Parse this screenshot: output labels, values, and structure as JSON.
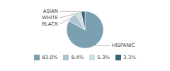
{
  "chart_data": {
    "type": "pie",
    "categories": [
      "HISPANIC",
      "BLACK",
      "WHITE",
      "ASIAN"
    ],
    "values": [
      83.0,
      8.4,
      5.3,
      3.3
    ],
    "value_labels": [
      "83.0%",
      "8.4%",
      "5.3%",
      "3.3%"
    ],
    "colors": [
      "#7a9fb0",
      "#adc4cf",
      "#ccdde4",
      "#3a6275"
    ],
    "legend": "bottom"
  }
}
